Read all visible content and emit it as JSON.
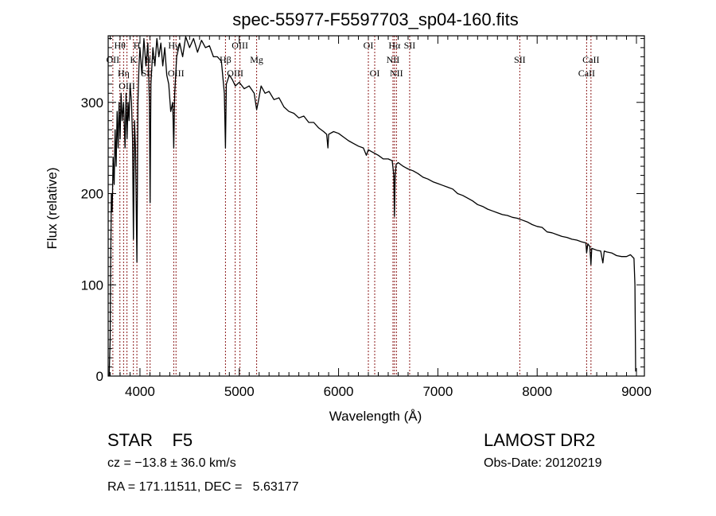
{
  "chart_data": {
    "type": "line",
    "title": "spec-55977-F5597703_sp04-160.fits",
    "xlabel": "Wavelength (Å)",
    "ylabel": "Flux (relative)",
    "xlim": [
      3680,
      9080
    ],
    "ylim": [
      0,
      373
    ],
    "xticks": [
      4000,
      5000,
      6000,
      7000,
      8000,
      9000
    ],
    "yticks": [
      0,
      100,
      200,
      300
    ],
    "grid": false,
    "series": [
      {
        "name": "spectrum",
        "color": "#000000",
        "points": [
          [
            3690,
            0
          ],
          [
            3700,
            40
          ],
          [
            3705,
            120
          ],
          [
            3712,
            200
          ],
          [
            3720,
            180
          ],
          [
            3730,
            240
          ],
          [
            3740,
            210
          ],
          [
            3750,
            270
          ],
          [
            3760,
            230
          ],
          [
            3770,
            290
          ],
          [
            3780,
            250
          ],
          [
            3790,
            300
          ],
          [
            3800,
            260
          ],
          [
            3810,
            310
          ],
          [
            3820,
            280
          ],
          [
            3835,
            300
          ],
          [
            3850,
            250
          ],
          [
            3860,
            310
          ],
          [
            3870,
            260
          ],
          [
            3880,
            300
          ],
          [
            3890,
            280
          ],
          [
            3900,
            320
          ],
          [
            3915,
            300
          ],
          [
            3925,
            260
          ],
          [
            3934,
            150
          ],
          [
            3945,
            280
          ],
          [
            3955,
            250
          ],
          [
            3969,
            125
          ],
          [
            3980,
            300
          ],
          [
            3990,
            340
          ],
          [
            4000,
            360
          ],
          [
            4020,
            330
          ],
          [
            4040,
            370
          ],
          [
            4060,
            340
          ],
          [
            4080,
            365
          ],
          [
            4095,
            300
          ],
          [
            4102,
            190
          ],
          [
            4110,
            320
          ],
          [
            4130,
            360
          ],
          [
            4150,
            340
          ],
          [
            4170,
            370
          ],
          [
            4190,
            350
          ],
          [
            4210,
            365
          ],
          [
            4230,
            340
          ],
          [
            4250,
            360
          ],
          [
            4270,
            330
          ],
          [
            4290,
            320
          ],
          [
            4310,
            290
          ],
          [
            4330,
            300
          ],
          [
            4340,
            250
          ],
          [
            4350,
            310
          ],
          [
            4370,
            350
          ],
          [
            4400,
            365
          ],
          [
            4430,
            350
          ],
          [
            4460,
            372
          ],
          [
            4500,
            360
          ],
          [
            4540,
            370
          ],
          [
            4580,
            355
          ],
          [
            4620,
            368
          ],
          [
            4660,
            360
          ],
          [
            4700,
            362
          ],
          [
            4740,
            350
          ],
          [
            4780,
            350
          ],
          [
            4820,
            345
          ],
          [
            4850,
            310
          ],
          [
            4861,
            250
          ],
          [
            4870,
            320
          ],
          [
            4900,
            330
          ],
          [
            4930,
            325
          ],
          [
            4960,
            318
          ],
          [
            5000,
            322
          ],
          [
            5050,
            315
          ],
          [
            5100,
            318
          ],
          [
            5150,
            310
          ],
          [
            5175,
            292
          ],
          [
            5190,
            300
          ],
          [
            5220,
            318
          ],
          [
            5260,
            310
          ],
          [
            5300,
            312
          ],
          [
            5350,
            303
          ],
          [
            5400,
            305
          ],
          [
            5450,
            295
          ],
          [
            5500,
            290
          ],
          [
            5550,
            288
          ],
          [
            5600,
            283
          ],
          [
            5650,
            285
          ],
          [
            5700,
            278
          ],
          [
            5750,
            278
          ],
          [
            5800,
            272
          ],
          [
            5850,
            268
          ],
          [
            5880,
            265
          ],
          [
            5893,
            250
          ],
          [
            5900,
            265
          ],
          [
            5950,
            268
          ],
          [
            6000,
            266
          ],
          [
            6050,
            262
          ],
          [
            6100,
            258
          ],
          [
            6150,
            255
          ],
          [
            6200,
            252
          ],
          [
            6250,
            250
          ],
          [
            6280,
            242
          ],
          [
            6300,
            248
          ],
          [
            6350,
            245
          ],
          [
            6400,
            242
          ],
          [
            6450,
            238
          ],
          [
            6500,
            238
          ],
          [
            6540,
            236
          ],
          [
            6556,
            220
          ],
          [
            6563,
            175
          ],
          [
            6570,
            220
          ],
          [
            6580,
            232
          ],
          [
            6600,
            234
          ],
          [
            6650,
            230
          ],
          [
            6700,
            227
          ],
          [
            6750,
            225
          ],
          [
            6800,
            222
          ],
          [
            6850,
            218
          ],
          [
            6900,
            216
          ],
          [
            6950,
            213
          ],
          [
            7000,
            211
          ],
          [
            7050,
            209
          ],
          [
            7100,
            207
          ],
          [
            7150,
            205
          ],
          [
            7200,
            200
          ],
          [
            7250,
            198
          ],
          [
            7300,
            195
          ],
          [
            7350,
            192
          ],
          [
            7400,
            188
          ],
          [
            7450,
            186
          ],
          [
            7500,
            183
          ],
          [
            7550,
            181
          ],
          [
            7600,
            179
          ],
          [
            7650,
            177
          ],
          [
            7700,
            176
          ],
          [
            7750,
            174
          ],
          [
            7800,
            173
          ],
          [
            7850,
            171
          ],
          [
            7900,
            169
          ],
          [
            7950,
            166
          ],
          [
            8000,
            164
          ],
          [
            8050,
            163
          ],
          [
            8100,
            158
          ],
          [
            8150,
            157
          ],
          [
            8200,
            155
          ],
          [
            8250,
            153
          ],
          [
            8300,
            152
          ],
          [
            8350,
            150
          ],
          [
            8400,
            149
          ],
          [
            8450,
            147
          ],
          [
            8490,
            146
          ],
          [
            8498,
            135
          ],
          [
            8510,
            145
          ],
          [
            8530,
            142
          ],
          [
            8542,
            122
          ],
          [
            8550,
            140
          ],
          [
            8600,
            138
          ],
          [
            8640,
            137
          ],
          [
            8662,
            124
          ],
          [
            8675,
            137
          ],
          [
            8700,
            136
          ],
          [
            8750,
            135
          ],
          [
            8800,
            132
          ],
          [
            8850,
            131
          ],
          [
            8900,
            131
          ],
          [
            8940,
            133
          ],
          [
            8975,
            129
          ],
          [
            8985,
            100
          ],
          [
            8992,
            5
          ]
        ]
      }
    ],
    "line_color": "#8b1a1a",
    "line_markers": [
      {
        "label": "OII",
        "wavelength": 3727,
        "row": 2
      },
      {
        "label": "Hθ",
        "wavelength": 3798,
        "row": 1
      },
      {
        "label": "Hη",
        "wavelength": 3835,
        "row": 3
      },
      {
        "label": "OIII",
        "wavelength": 3869,
        "row": 3
      },
      {
        "label": "K",
        "wavelength": 3934,
        "row": 2
      },
      {
        "label": "H",
        "wavelength": 3969,
        "row": 1
      },
      {
        "label": "SII",
        "wavelength": 4072,
        "row": 3
      },
      {
        "label": "Hδ",
        "wavelength": 4102,
        "row": 2
      },
      {
        "label": "Hγ",
        "wavelength": 4340,
        "row": 1
      },
      {
        "label": "OIII",
        "wavelength": 4363,
        "row": 3
      },
      {
        "label": "Hβ",
        "wavelength": 4861,
        "row": 2
      },
      {
        "label": "OIII",
        "wavelength": 4959,
        "row": 3
      },
      {
        "label": "OIII",
        "wavelength": 5007,
        "row": 1
      },
      {
        "label": "Mg",
        "wavelength": 5175,
        "row": 2
      },
      {
        "label": "OI",
        "wavelength": 6300,
        "row": 1
      },
      {
        "label": "OI",
        "wavelength": 6364,
        "row": 3
      },
      {
        "label": "NII",
        "wavelength": 6548,
        "row": 2
      },
      {
        "label": "Hα",
        "wavelength": 6563,
        "row": 1
      },
      {
        "label": "NII",
        "wavelength": 6583,
        "row": 3
      },
      {
        "label": "SII",
        "wavelength": 6716,
        "row": 1
      },
      {
        "label": "SII",
        "wavelength": 7825,
        "row": 2
      },
      {
        "label": "CaII",
        "wavelength": 8498,
        "row": 3
      },
      {
        "label": "CaII",
        "wavelength": 8542,
        "row": 2
      }
    ]
  },
  "info": {
    "object_class": "STAR    F5",
    "survey": "LAMOST DR2",
    "redshift": "cz = −13.8 ± 36.0 km/s",
    "obs_date": "Obs-Date: 20120219",
    "coords": "RA = 171.11511, DEC =   5.63177"
  }
}
